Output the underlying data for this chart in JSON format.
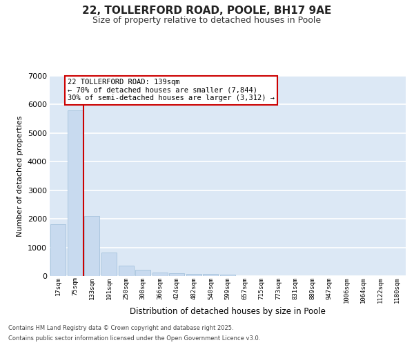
{
  "title": "22, TOLLERFORD ROAD, POOLE, BH17 9AE",
  "subtitle": "Size of property relative to detached houses in Poole",
  "xlabel": "Distribution of detached houses by size in Poole",
  "ylabel": "Number of detached properties",
  "categories": [
    "17sqm",
    "75sqm",
    "133sqm",
    "191sqm",
    "250sqm",
    "308sqm",
    "366sqm",
    "424sqm",
    "482sqm",
    "540sqm",
    "599sqm",
    "657sqm",
    "715sqm",
    "773sqm",
    "831sqm",
    "889sqm",
    "947sqm",
    "1006sqm",
    "1064sqm",
    "1122sqm",
    "1180sqm"
  ],
  "values": [
    1800,
    5800,
    2100,
    820,
    370,
    220,
    130,
    90,
    75,
    65,
    50,
    0,
    0,
    0,
    0,
    0,
    0,
    0,
    0,
    0,
    0
  ],
  "bar_color": "#c8daef",
  "bar_edge_color": "#9bbcd8",
  "bar_width": 0.9,
  "ylim": [
    0,
    7000
  ],
  "yticks": [
    0,
    1000,
    2000,
    3000,
    4000,
    5000,
    6000,
    7000
  ],
  "redline_x": 1.5,
  "annotation_title": "22 TOLLERFORD ROAD: 139sqm",
  "annotation_line1": "← 70% of detached houses are smaller (7,844)",
  "annotation_line2": "30% of semi-detached houses are larger (3,312) →",
  "annotation_box_facecolor": "#ffffff",
  "annotation_box_edgecolor": "#cc0000",
  "redline_color": "#cc0000",
  "fig_background": "#ffffff",
  "plot_background": "#dce8f5",
  "grid_color": "#ffffff",
  "footer_line1": "Contains HM Land Registry data © Crown copyright and database right 2025.",
  "footer_line2": "Contains public sector information licensed under the Open Government Licence v3.0."
}
